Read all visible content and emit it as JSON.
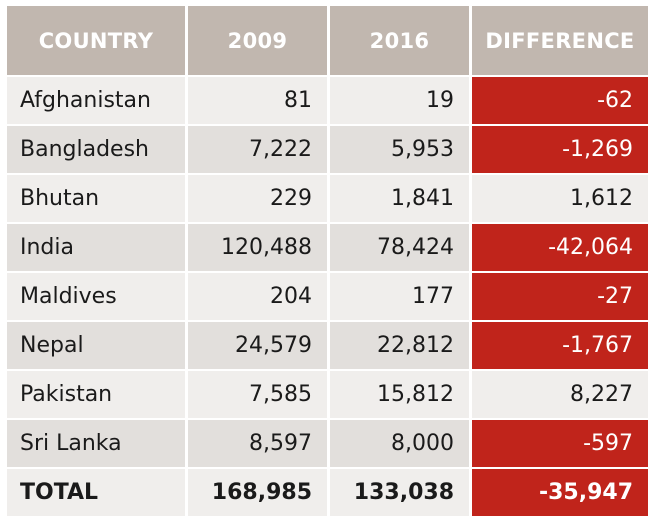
{
  "chart_data": {
    "type": "table",
    "columns": [
      "COUNTRY",
      "2009",
      "2016",
      "DIFFERENCE"
    ],
    "rows": [
      {
        "country": "Afghanistan",
        "y2009": "81",
        "y2016": "19",
        "difference": "-62"
      },
      {
        "country": "Bangladesh",
        "y2009": "7,222",
        "y2016": "5,953",
        "difference": "-1,269"
      },
      {
        "country": "Bhutan",
        "y2009": "229",
        "y2016": "1,841",
        "difference": "1,612"
      },
      {
        "country": "India",
        "y2009": "120,488",
        "y2016": "78,424",
        "difference": "-42,064"
      },
      {
        "country": "Maldives",
        "y2009": "204",
        "y2016": "177",
        "difference": "-27"
      },
      {
        "country": "Nepal",
        "y2009": "24,579",
        "y2016": "22,812",
        "difference": "-1,767"
      },
      {
        "country": "Pakistan",
        "y2009": "7,585",
        "y2016": "15,812",
        "difference": "8,227"
      },
      {
        "country": "Sri Lanka",
        "y2009": "8,597",
        "y2016": "8,000",
        "difference": "-597"
      }
    ],
    "total": {
      "country": "TOTAL",
      "y2009": "168,985",
      "y2016": "133,038",
      "difference": "-35,947"
    }
  },
  "colors": {
    "header_bg": "#c1b7af",
    "row_light": "#f0eeec",
    "row_dark": "#e2dfdc",
    "negative_bg": "#c0241b",
    "negative_text": "#ffffff"
  }
}
